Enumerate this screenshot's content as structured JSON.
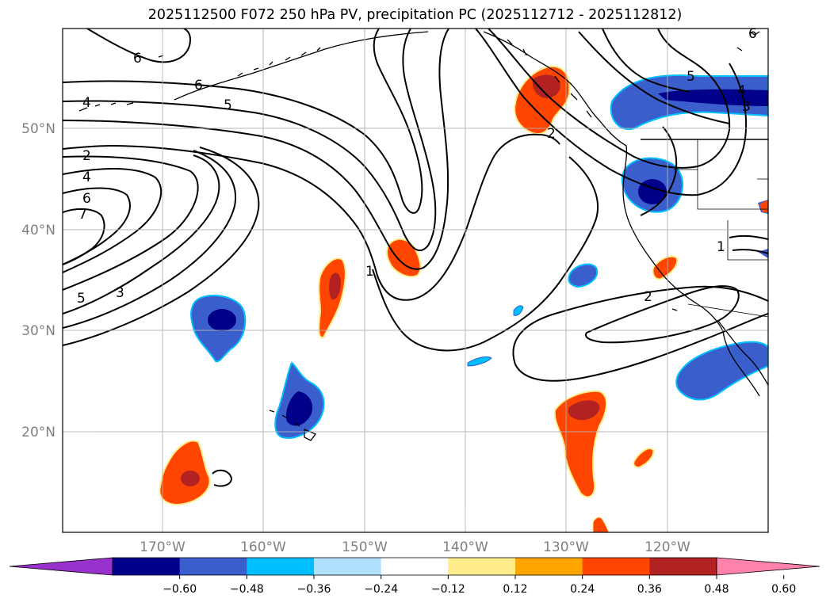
{
  "title": "2025112500 F072 250 hPa PV, precipitation PC (2025112712 - 2025112812)",
  "lat_labels": [
    "50°N",
    "40°N",
    "30°N",
    "20°N"
  ],
  "lon_labels": [
    "170°W",
    "160°W",
    "150°W",
    "140°W",
    "130°W",
    "120°W"
  ],
  "colorbar": {
    "ticks": [
      "−0.60",
      "−0.48",
      "−0.36",
      "−0.24",
      "−0.12",
      "0.12",
      "0.24",
      "0.36",
      "0.48",
      "0.60"
    ],
    "colors": [
      "#9932cc",
      "#00008b",
      "#3a5fcd",
      "#00bfff",
      "#b0e2ff",
      "#ffffff",
      "#ffec8b",
      "#ffa500",
      "#ff4500",
      "#b22222",
      "#ff82ab"
    ]
  },
  "contour_labels": [
    "6",
    "6",
    "5",
    "4",
    "2",
    "4",
    "6",
    "7",
    "5",
    "3",
    "1",
    "2",
    "5",
    "4",
    "3",
    "2",
    "1",
    "6"
  ]
}
